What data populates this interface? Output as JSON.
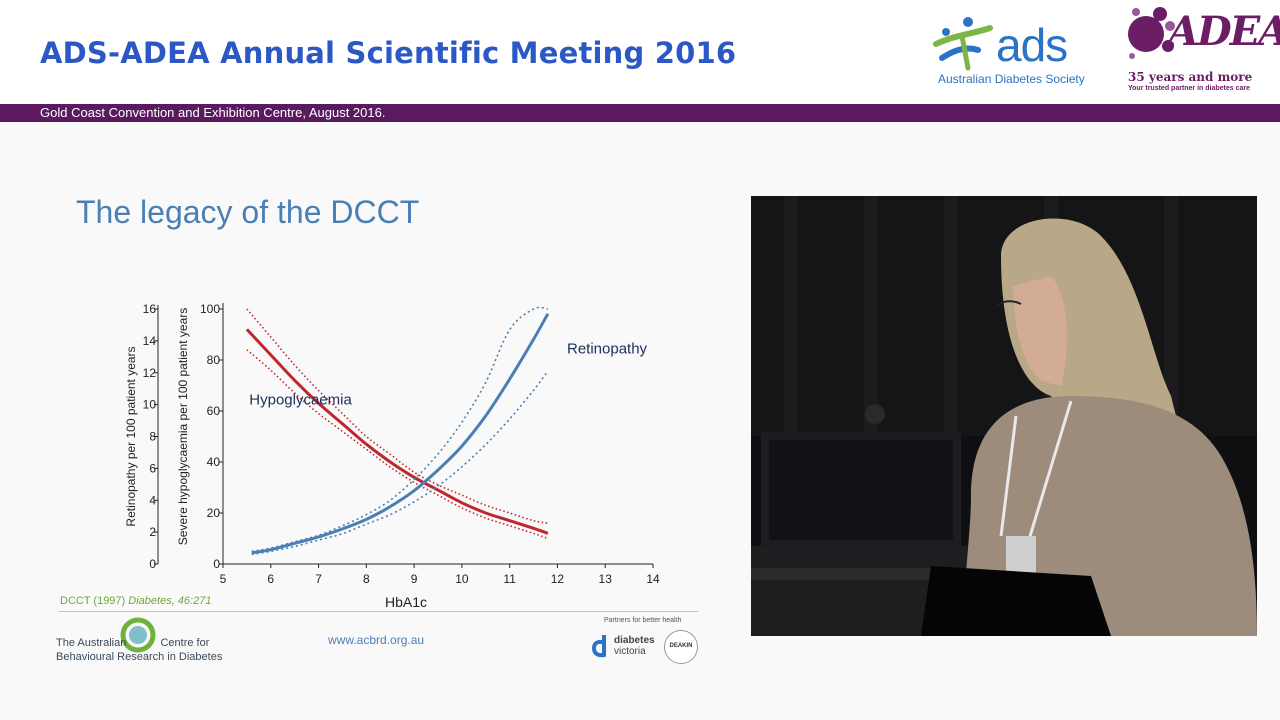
{
  "header": {
    "meeting_title": "ADS-ADEA Annual Scientific Meeting 2016",
    "venue": "Gold Coast Convention and Exhibition Centre, August 2016.",
    "ads_logo": {
      "word": "ads",
      "subtitle": "Australian Diabetes Society"
    },
    "adea_logo": {
      "word": "ADEA",
      "years": "35 years and more",
      "tagline": "Your trusted partner in diabetes care"
    }
  },
  "slide": {
    "title": "The legacy of the DCCT",
    "citation_prefix": "DCCT (1997)",
    "citation_journal": "Diabetes, 46:271",
    "footer": {
      "org_line1_a": "The Australian",
      "org_line1_b": "Centre for",
      "org_line2": "Behavioural Research in Diabetes",
      "website": "www.acbrd.org.au",
      "partners": "Partners for better health",
      "diabetes_victoria_a": "diabetes",
      "diabetes_victoria_b": "victoria",
      "deakin": "DEAKIN"
    }
  },
  "chart_data": {
    "type": "line",
    "xlabel": "HbA1c",
    "ylabel_left": "Retinopathy per 100 patient years",
    "ylabel_right": "Severe hypoglycaemia per 100 patient years",
    "x_ticks": [
      "5",
      "6",
      "7",
      "8",
      "9",
      "10",
      "11",
      "12",
      "13",
      "14"
    ],
    "xlim": [
      5,
      14
    ],
    "left_axis": {
      "ticks": [
        "0",
        "2",
        "4",
        "6",
        "8",
        "10",
        "12",
        "14",
        "16"
      ],
      "ylim": [
        0,
        16
      ]
    },
    "right_axis": {
      "ticks": [
        "0",
        "20",
        "40",
        "60",
        "80",
        "100"
      ],
      "ylim": [
        0,
        100
      ]
    },
    "series": [
      {
        "name": "Hypoglycaemia",
        "axis": "right",
        "color": "#c0262d",
        "x": [
          5.5,
          6,
          6.5,
          7,
          7.5,
          8,
          8.5,
          9,
          9.5,
          10,
          10.5,
          11,
          11.5,
          11.8
        ],
        "values": [
          92,
          82,
          72,
          63,
          55,
          47,
          40,
          34,
          29,
          24,
          20,
          17,
          14,
          12
        ],
        "upper": [
          100,
          89,
          78,
          68,
          59,
          50,
          43,
          36,
          31,
          27,
          23,
          20,
          17,
          16
        ],
        "lower": [
          84,
          76,
          67,
          59,
          52,
          45,
          38,
          32,
          27,
          22,
          18,
          15,
          12,
          10
        ]
      },
      {
        "name": "Retinopathy",
        "axis": "left",
        "color": "#4a7fb5",
        "x": [
          5.6,
          6,
          6.5,
          7,
          7.5,
          8,
          8.5,
          9,
          9.5,
          10,
          10.5,
          11,
          11.5,
          11.8
        ],
        "values": [
          0.7,
          0.9,
          1.3,
          1.7,
          2.2,
          2.8,
          3.6,
          4.6,
          5.9,
          7.4,
          9.3,
          11.6,
          14.1,
          15.7
        ],
        "upper": [
          0.8,
          1.0,
          1.4,
          1.8,
          2.4,
          3.1,
          4.0,
          5.3,
          6.9,
          8.9,
          11.4,
          14.7,
          16,
          16
        ],
        "lower": [
          0.6,
          0.8,
          1.1,
          1.5,
          1.9,
          2.5,
          3.1,
          3.9,
          4.9,
          6.1,
          7.5,
          9.1,
          10.9,
          12.1
        ]
      }
    ]
  }
}
